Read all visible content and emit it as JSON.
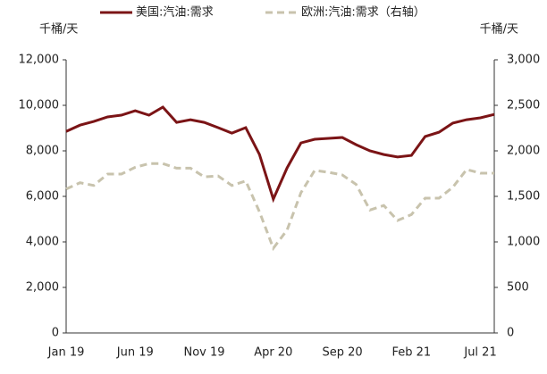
{
  "chart_data": {
    "type": "line",
    "y_unit": "千桶/天",
    "y2_unit": "千桶/天",
    "categories": [
      "Jan 19",
      null,
      null,
      null,
      null,
      "Jun 19",
      null,
      null,
      null,
      null,
      "Nov 19",
      null,
      null,
      null,
      null,
      "Apr 20",
      null,
      null,
      null,
      null,
      "Sep 20",
      null,
      null,
      null,
      null,
      "Feb 21",
      null,
      null,
      null,
      null,
      "Jul 21",
      null
    ],
    "series": [
      {
        "name": "美国:汽油:需求",
        "color": "#7b1416",
        "dashed": false,
        "values": [
          8850,
          9130,
          9290,
          9490,
          9570,
          9760,
          9570,
          9920,
          9250,
          9370,
          9250,
          9020,
          8780,
          9020,
          7840,
          5880,
          7250,
          8350,
          8510,
          8550,
          8590,
          8270,
          8000,
          7840,
          7730,
          7800,
          8630,
          8820,
          9220,
          9370,
          9450,
          9600
        ]
      },
      {
        "name": "欧洲:汽油:需求（右轴）",
        "color": "#c8c3ad",
        "dashed": true,
        "axis": "y2",
        "values": [
          1580,
          1650,
          1620,
          1745,
          1745,
          1820,
          1860,
          1860,
          1810,
          1810,
          1715,
          1725,
          1620,
          1670,
          1330,
          930,
          1130,
          1540,
          1785,
          1765,
          1735,
          1630,
          1350,
          1400,
          1235,
          1300,
          1480,
          1480,
          1600,
          1795,
          1755,
          1755
        ]
      }
    ],
    "ylim": [
      0,
      12000
    ],
    "yticks": [
      0,
      {
        "value": 2000,
        "label": "2,000"
      },
      {
        "value": 4000,
        "label": "4,000"
      },
      {
        "value": 6000,
        "label": "6,000"
      },
      {
        "value": 8000,
        "label": "8,000"
      },
      {
        "value": 10000,
        "label": "10,000"
      },
      {
        "value": 12000,
        "label": "12,000"
      }
    ],
    "y2lim": [
      0,
      3000
    ],
    "y2ticks": [
      0,
      500,
      {
        "value": 1000,
        "label": "1,000"
      },
      {
        "value": 1500,
        "label": "1,500"
      },
      {
        "value": 2000,
        "label": "2,000"
      },
      {
        "value": 2500,
        "label": "2,500"
      },
      {
        "value": 3000,
        "label": "3,000"
      }
    ],
    "legend": "top"
  }
}
